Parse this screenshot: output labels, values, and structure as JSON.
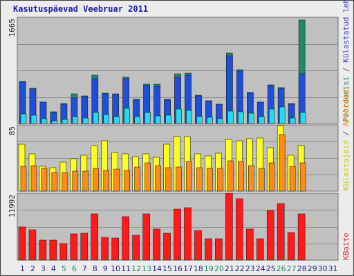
{
  "title": "Kasutuspäevad Veebruar 2011",
  "legend": {
    "visits_pages_files": [
      {
        "text": "Pöördumisi",
        "color": "#2e8b57"
      },
      {
        "text": " / ",
        "color": "#555555"
      },
      {
        "text": "Külastatud lehti",
        "color": "#3a3ad0"
      },
      {
        "text": " / ",
        "color": "#555555"
      },
      {
        "text": "Faile",
        "color": "#1e90ff"
      }
    ],
    "visitors": [
      {
        "text": "Külastajaid",
        "color": "#cccc00"
      },
      {
        "text": " / ",
        "color": "#555555"
      },
      {
        "text": "Arvuteid",
        "color": "#ff8c00"
      }
    ],
    "kbytes": [
      {
        "text": "KBaite",
        "color": "#e02020"
      }
    ]
  },
  "colors": {
    "hits": "#1f8a6a",
    "files": "#1e4fd8",
    "pages": "#28d8f0",
    "visits": "#ffff22",
    "sites": "#ff8c1a",
    "kbytes": "#ff1a1a",
    "panel_bg": "#c0c0c0",
    "weekend_day": "#1f8a6a",
    "weekday": "#1c1c8c",
    "no_data_day": "#1c1c8c"
  },
  "chart_data": {
    "type": "bar",
    "categories": [
      "1",
      "2",
      "3",
      "4",
      "5",
      "6",
      "7",
      "8",
      "9",
      "10",
      "11",
      "12",
      "13",
      "14",
      "15",
      "16",
      "17",
      "18",
      "19",
      "20",
      "21",
      "22",
      "23",
      "24",
      "25",
      "26",
      "27",
      "28",
      "29",
      "30",
      "31"
    ],
    "weekend_days": [
      "5",
      "6",
      "12",
      "13",
      "19",
      "20",
      "26",
      "27"
    ],
    "panels": [
      {
        "name": "usage",
        "ymax_label": "1665",
        "ymax": 1665,
        "series": [
          {
            "name": "Pöördumisi",
            "key": "hits",
            "values": [
              660,
              550,
              340,
              180,
              310,
              460,
              430,
              760,
              480,
              460,
              720,
              380,
              620,
              620,
              380,
              780,
              790,
              440,
              360,
              300,
              1100,
              840,
              490,
              340,
              610,
              560,
              310,
              1620,
              null,
              null,
              null
            ]
          },
          {
            "name": "Faile",
            "key": "files",
            "values": [
              650,
              540,
              330,
              170,
              300,
              400,
              420,
              700,
              460,
              450,
              700,
              370,
              600,
              580,
              370,
              720,
              760,
              430,
              350,
              300,
              1060,
              820,
              480,
              330,
              600,
              550,
              300,
              780,
              null,
              null,
              null
            ]
          },
          {
            "name": "Külastatud lehti",
            "key": "pages",
            "values": [
              150,
              130,
              80,
              40,
              70,
              110,
              90,
              170,
              140,
              110,
              240,
              110,
              170,
              120,
              130,
              230,
              210,
              110,
              100,
              80,
              200,
              180,
              160,
              110,
              230,
              260,
              90,
              170,
              null,
              null,
              null
            ]
          }
        ]
      },
      {
        "name": "visitors",
        "ymax_label": "85",
        "ymax": 85,
        "series": [
          {
            "name": "Külastajaid",
            "key": "visits",
            "values": [
              60,
              48,
              32,
              30,
              37,
              42,
              46,
              58,
              65,
              50,
              48,
              44,
              48,
              43,
              60,
              70,
              70,
              48,
              45,
              49,
              66,
              65,
              67,
              68,
              56,
              84,
              46,
              58,
              null,
              null,
              null
            ]
          },
          {
            "name": "Arvuteid",
            "key": "sites",
            "values": [
              32,
              33,
              29,
              24,
              24,
              26,
              26,
              29,
              27,
              28,
              27,
              31,
              36,
              33,
              30,
              31,
              38,
              30,
              29,
              29,
              39,
              38,
              33,
              29,
              36,
              73,
              32,
              36,
              null,
              null,
              null
            ]
          }
        ]
      },
      {
        "name": "kbytes",
        "ymax_label": "11992",
        "ymax": 11992,
        "series": [
          {
            "name": "KBaite",
            "key": "kbytes",
            "values": [
              5990,
              5430,
              3610,
              3610,
              2990,
              4640,
              4760,
              8250,
              4100,
              3960,
              7810,
              4390,
              8330,
              5590,
              4860,
              9170,
              9380,
              5290,
              3810,
              3810,
              11992,
              11000,
              5550,
              3810,
              8870,
              10080,
              4950,
              8340,
              null,
              null,
              null
            ]
          }
        ]
      }
    ]
  }
}
